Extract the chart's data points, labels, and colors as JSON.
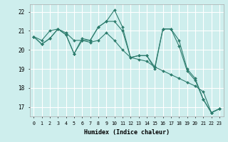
{
  "xlabel": "Humidex (Indice chaleur)",
  "background_color": "#ceeeed",
  "grid_color": "#ffffff",
  "line_color": "#2e7d6e",
  "xlim": [
    -0.5,
    23.5
  ],
  "ylim": [
    16.5,
    22.4
  ],
  "yticks": [
    17,
    18,
    19,
    20,
    21,
    22
  ],
  "xticks": [
    0,
    1,
    2,
    3,
    4,
    5,
    6,
    7,
    8,
    9,
    10,
    11,
    12,
    13,
    14,
    15,
    16,
    17,
    18,
    19,
    20,
    21,
    22,
    23
  ],
  "series": [
    [
      20.7,
      20.3,
      20.6,
      21.1,
      20.8,
      19.8,
      20.6,
      20.5,
      21.2,
      21.5,
      22.1,
      21.2,
      19.6,
      19.7,
      19.7,
      19.1,
      21.1,
      21.1,
      20.2,
      18.9,
      18.4,
      17.4,
      16.7,
      16.9
    ],
    [
      20.7,
      20.5,
      21.0,
      21.1,
      20.9,
      20.5,
      20.5,
      20.4,
      20.5,
      20.9,
      20.5,
      20.0,
      19.6,
      19.5,
      19.4,
      19.1,
      18.9,
      18.7,
      18.5,
      18.3,
      18.1,
      17.8,
      16.7,
      16.9
    ],
    [
      20.7,
      20.3,
      20.6,
      21.1,
      20.8,
      19.8,
      20.5,
      20.5,
      21.2,
      21.5,
      21.5,
      21.0,
      19.6,
      19.7,
      19.7,
      19.0,
      21.1,
      21.1,
      20.5,
      19.0,
      18.5,
      17.4,
      16.7,
      16.9
    ]
  ]
}
